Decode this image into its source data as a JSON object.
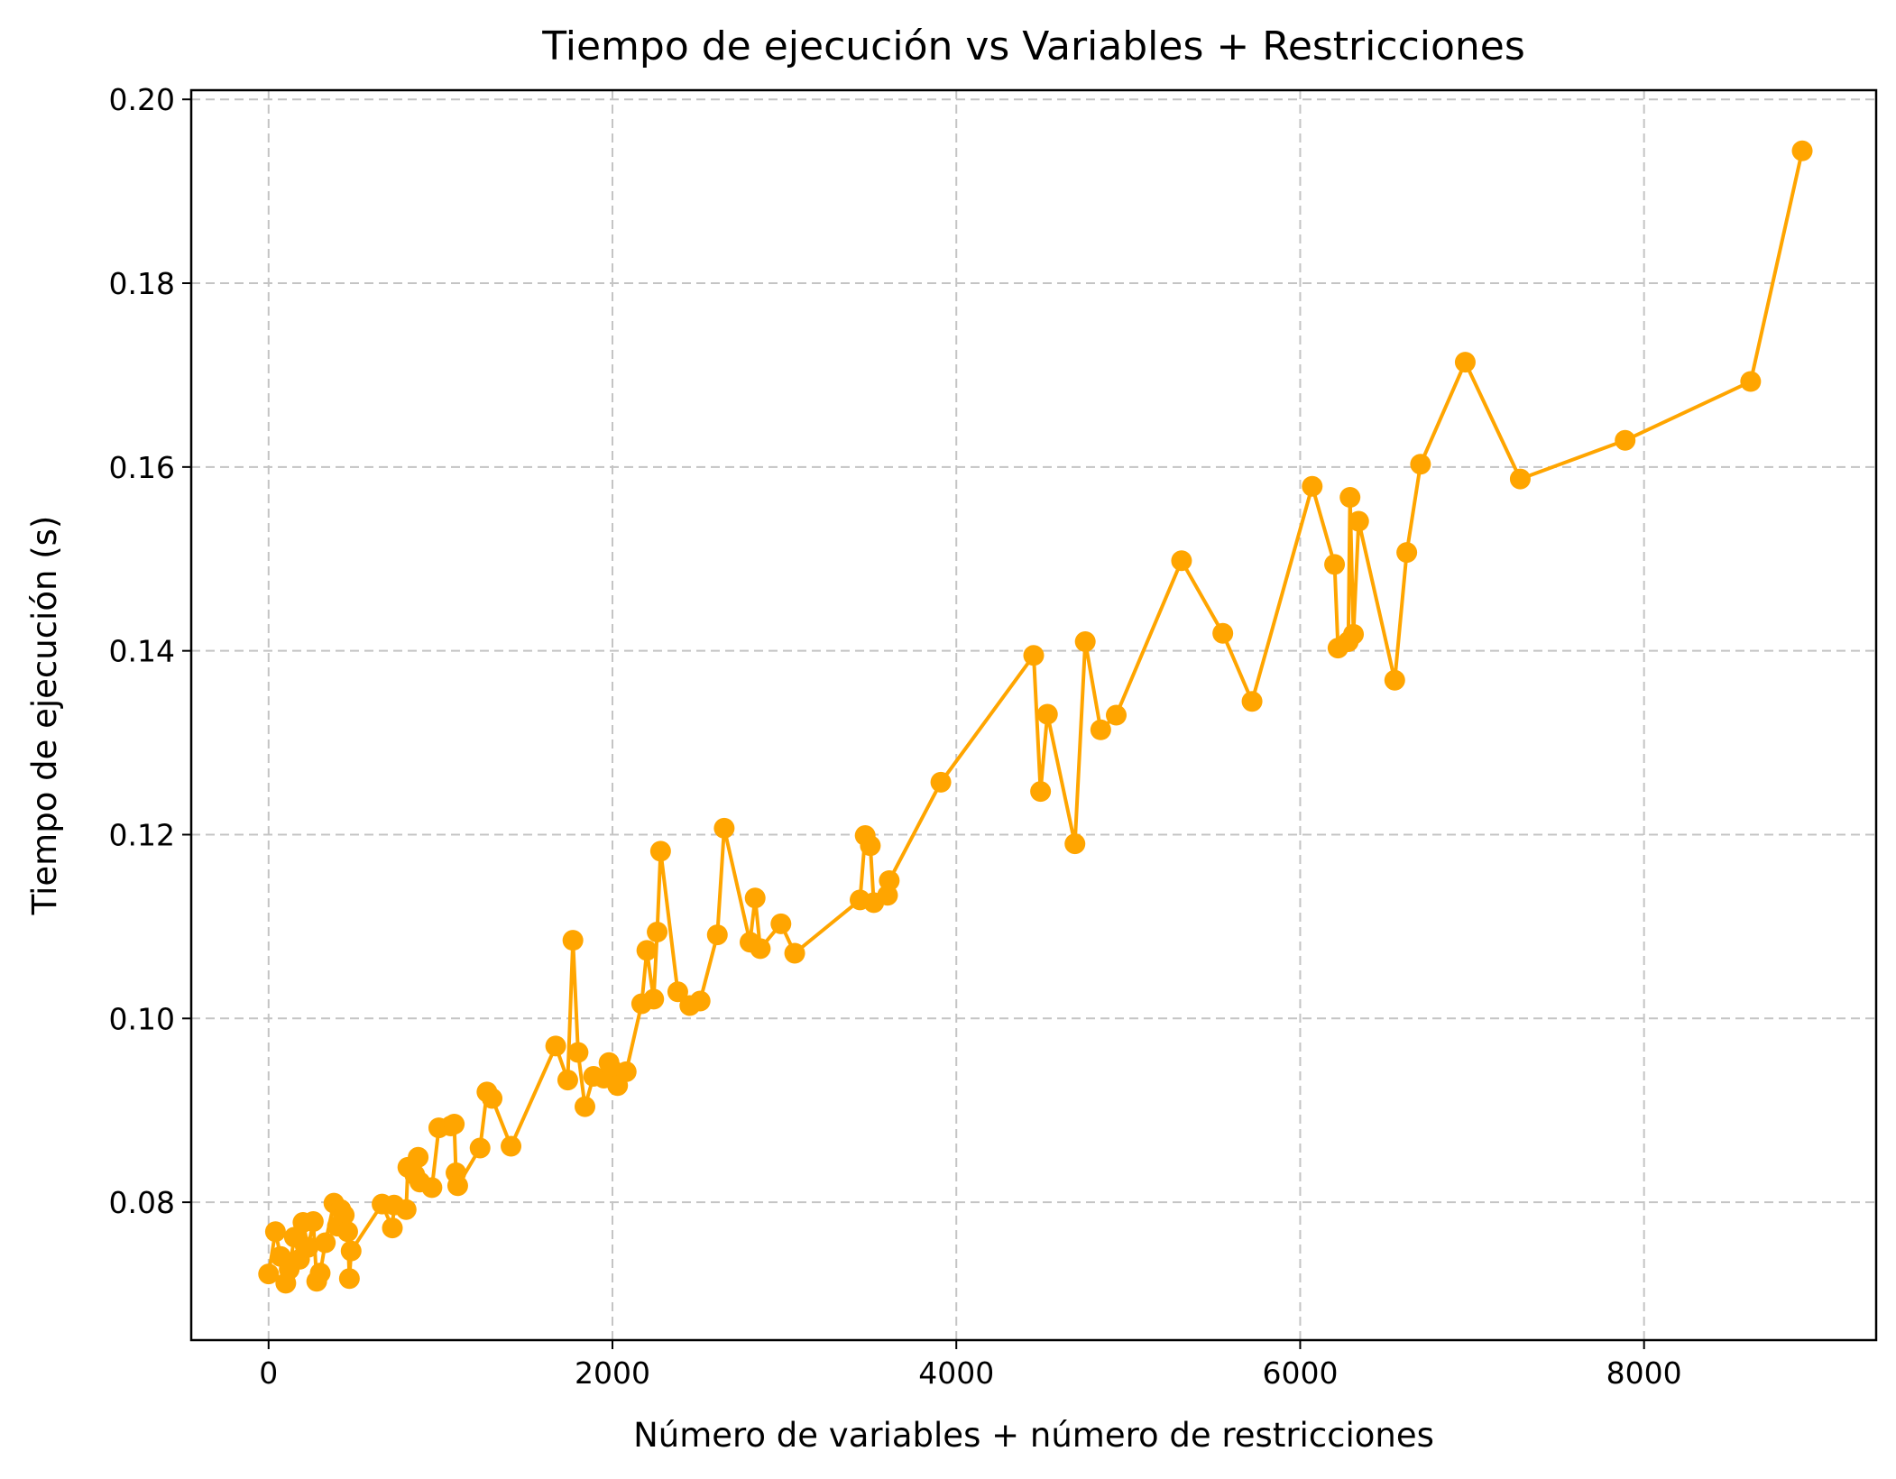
{
  "chart_data": {
    "type": "line",
    "title": "Tiempo de ejecución vs Variables + Restricciones",
    "xlabel": "Número de variables + número de restricciones",
    "ylabel": "Tiempo de ejecución (s)",
    "xlim": [
      -450,
      9350
    ],
    "ylim": [
      0.065,
      0.201
    ],
    "xticks": [
      0,
      2000,
      4000,
      6000,
      8000
    ],
    "xtick_labels": [
      "0",
      "2000",
      "4000",
      "6000",
      "8000"
    ],
    "yticks": [
      0.08,
      0.1,
      0.12,
      0.14,
      0.16,
      0.18,
      0.2
    ],
    "ytick_labels": [
      "0.08",
      "0.10",
      "0.12",
      "0.14",
      "0.16",
      "0.18",
      "0.20"
    ],
    "grid": true,
    "marker": "circle",
    "color": "#ffa500",
    "series": [
      {
        "x": [
          0,
          40,
          70,
          100,
          120,
          150,
          180,
          200,
          230,
          260,
          280,
          300,
          330,
          380,
          400,
          420,
          440,
          460,
          470,
          480,
          660,
          720,
          730,
          800,
          810,
          850,
          870,
          880,
          950,
          990,
          1060,
          1080,
          1090,
          1100,
          1230,
          1270,
          1300,
          1410,
          1670,
          1740,
          1770,
          1800,
          1840,
          1890,
          1950,
          1980,
          2000,
          2030,
          2080,
          2170,
          2200,
          2240,
          2260,
          2280,
          2380,
          2450,
          2510,
          2610,
          2650,
          2800,
          2830,
          2860,
          2980,
          3060,
          3440,
          3470,
          3500,
          3520,
          3600,
          3610,
          3910,
          4450,
          4490,
          4530,
          4690,
          4750,
          4840,
          4930,
          5310,
          5550,
          5720,
          6070,
          6200,
          6220,
          6280,
          6290,
          6310,
          6340,
          6550,
          6620,
          6700,
          6960,
          7280,
          7890,
          8620,
          8920
        ],
        "y": [
          0.0722,
          0.0768,
          0.0741,
          0.0712,
          0.0727,
          0.0762,
          0.0738,
          0.0778,
          0.0751,
          0.0779,
          0.0714,
          0.0723,
          0.0756,
          0.0799,
          0.0774,
          0.0792,
          0.0786,
          0.0768,
          0.0717,
          0.0747,
          0.0798,
          0.0772,
          0.0797,
          0.0792,
          0.0838,
          0.083,
          0.0849,
          0.0822,
          0.0816,
          0.0881,
          0.0883,
          0.0885,
          0.0832,
          0.0818,
          0.0859,
          0.092,
          0.0913,
          0.0861,
          0.097,
          0.0933,
          0.1085,
          0.0963,
          0.0904,
          0.0937,
          0.0935,
          0.0952,
          0.0944,
          0.0927,
          0.0942,
          0.1016,
          0.1074,
          0.1021,
          0.1094,
          0.1182,
          0.1029,
          0.1014,
          0.1019,
          0.1091,
          0.1207,
          0.1083,
          0.1131,
          0.1076,
          0.1103,
          0.1071,
          0.1129,
          0.1199,
          0.1188,
          0.1126,
          0.1134,
          0.115,
          0.1257,
          0.1395,
          0.1247,
          0.1331,
          0.119,
          0.141,
          0.1314,
          0.133,
          0.1498,
          0.1419,
          0.1345,
          0.1579,
          0.1494,
          0.1403,
          0.141,
          0.1567,
          0.1418,
          0.1541,
          0.1368,
          0.1507,
          0.1603,
          0.1714,
          0.1587,
          0.1629,
          0.1693,
          0.1944
        ]
      }
    ]
  }
}
